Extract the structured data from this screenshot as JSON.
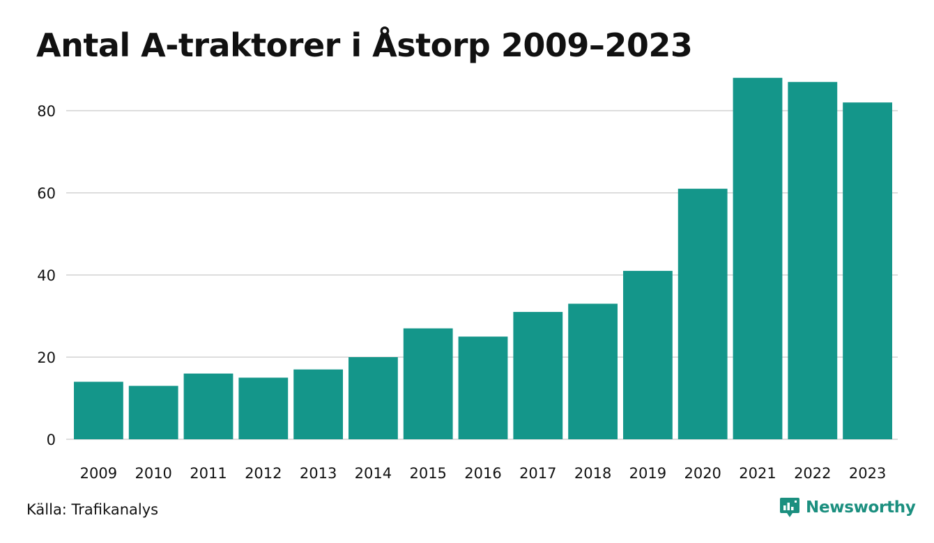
{
  "title": "Antal A-traktorer i Åstorp 2009–2023",
  "source": "Källa: Trafikanalys",
  "brand": {
    "name": "Newsworthy",
    "logo_icon": "newsworthy-chart-bubble-icon",
    "color": "#1b8f7f"
  },
  "colors": {
    "bar": "#14968a",
    "grid": "#dddddd",
    "text": "#111111"
  },
  "chart_data": {
    "type": "bar",
    "title": "Antal A-traktorer i Åstorp 2009–2023",
    "xlabel": "",
    "ylabel": "",
    "categories": [
      "2009",
      "2010",
      "2011",
      "2012",
      "2013",
      "2014",
      "2015",
      "2016",
      "2017",
      "2018",
      "2019",
      "2020",
      "2021",
      "2022",
      "2023"
    ],
    "values": [
      14,
      13,
      16,
      15,
      17,
      20,
      27,
      25,
      31,
      33,
      41,
      61,
      88,
      87,
      82
    ],
    "ylim": [
      0,
      90
    ],
    "yticks": [
      0,
      20,
      40,
      60,
      80
    ],
    "grid": true,
    "legend": "none"
  }
}
